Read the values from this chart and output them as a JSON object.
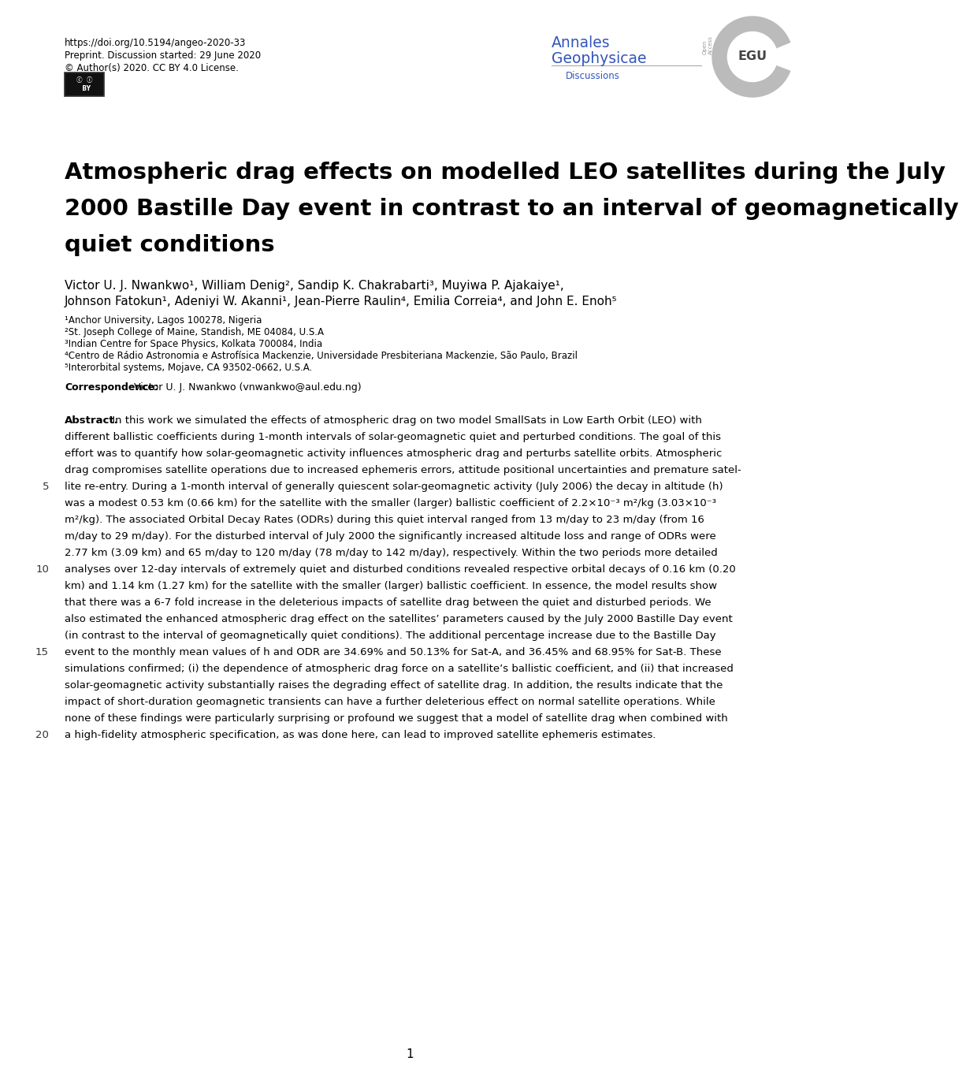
{
  "doi_text": "https://doi.org/10.5194/angeo-2020-33",
  "preprint_text": "Preprint. Discussion started: 29 June 2020",
  "copyright_text": "© Author(s) 2020. CC BY 4.0 License.",
  "journal_name1": "Annales",
  "journal_name2": "Geophysicae",
  "journal_sub": "Discussions",
  "journal_color": "#3355bb",
  "title_lines": [
    "Atmospheric drag effects on modelled LEO satellites during the July",
    "2000 Bastille Day event in contrast to an interval of geomagnetically",
    "quiet conditions"
  ],
  "authors_line1": "Victor U. J. Nwankwo¹, William Denig², Sandip K. Chakrabarti³, Muyiwa P. Ajakaiye¹,",
  "authors_line2": "Johnson Fatokun¹, Adeniyi W. Akanni¹, Jean-Pierre Raulin⁴, Emilia Correia⁴, and John E. Enoh⁵",
  "affil1": "¹Anchor University, Lagos 100278, Nigeria",
  "affil2": "²St. Joseph College of Maine, Standish, ME 04084, U.S.A",
  "affil3": "³Indian Centre for Space Physics, Kolkata 700084, India",
  "affil4": "⁴Centro de Rádio Astronomia e Astrofísica Mackenzie, Universidade Presbiteriana Mackenzie, São Paulo, Brazil",
  "affil5": "⁵Interorbital systems, Mojave, CA 93502-0662, U.S.A.",
  "correspondence_label": "Correspondence:",
  "correspondence_text": "Victor U. J. Nwankwo (vnwankwo@aul.edu.ng)",
  "abstract_label": "Abstract.",
  "abstract_lines": [
    " In this work we simulated the effects of atmospheric drag on two model SmallSats in Low Earth Orbit (LEO) with",
    "different ballistic coefficients during 1-month intervals of solar-geomagnetic quiet and perturbed conditions. The goal of this",
    "effort was to quantify how solar-geomagnetic activity influences atmospheric drag and perturbs satellite orbits. Atmospheric",
    "drag compromises satellite operations due to increased ephemeris errors, attitude positional uncertainties and premature satel-"
  ],
  "lines_5_9": [
    "lite re-entry. During a 1-month interval of generally quiescent solar-geomagnetic activity (July 2006) the decay in altitude (h)",
    "was a modest 0.53 km (0.66 km) for the satellite with the smaller (larger) ballistic coefficient of 2.2×10⁻³ m²/kg (3.03×10⁻³",
    "m²/kg). The associated Orbital Decay Rates (ODRs) during this quiet interval ranged from 13 m/day to 23 m/day (from 16",
    "m/day to 29 m/day). For the disturbed interval of July 2000 the significantly increased altitude loss and range of ODRs were",
    "2.77 km (3.09 km) and 65 m/day to 120 m/day (78 m/day to 142 m/day), respectively. Within the two periods more detailed"
  ],
  "lines_10_14": [
    "analyses over 12-day intervals of extremely quiet and disturbed conditions revealed respective orbital decays of 0.16 km (0.20",
    "km) and 1.14 km (1.27 km) for the satellite with the smaller (larger) ballistic coefficient. In essence, the model results show",
    "that there was a 6-7 fold increase in the deleterious impacts of satellite drag between the quiet and disturbed periods. We",
    "also estimated the enhanced atmospheric drag effect on the satellites’ parameters caused by the July 2000 Bastille Day event",
    "(in contrast to the interval of geomagnetically quiet conditions). The additional percentage increase due to the Bastille Day"
  ],
  "lines_15_19": [
    "event to the monthly mean values of h and ODR are 34.69% and 50.13% for Sat-A, and 36.45% and 68.95% for Sat-B. These",
    "simulations confirmed; (i) the dependence of atmospheric drag force on a satellite’s ballistic coefficient, and (ii) that increased",
    "solar-geomagnetic activity substantially raises the degrading effect of satellite drag. In addition, the results indicate that the",
    "impact of short-duration geomagnetic transients can have a further deleterious effect on normal satellite operations. While",
    "none of these findings were particularly surprising or profound we suggest that a model of satellite drag when combined with"
  ],
  "line20_text": "a high-fidelity atmospheric specification, as was done here, can lead to improved satellite ephemeris estimates.",
  "line_numbers": [
    "5",
    "10",
    "15",
    "20"
  ],
  "page_number": "1",
  "bg_color": "#ffffff",
  "text_color": "#000000"
}
